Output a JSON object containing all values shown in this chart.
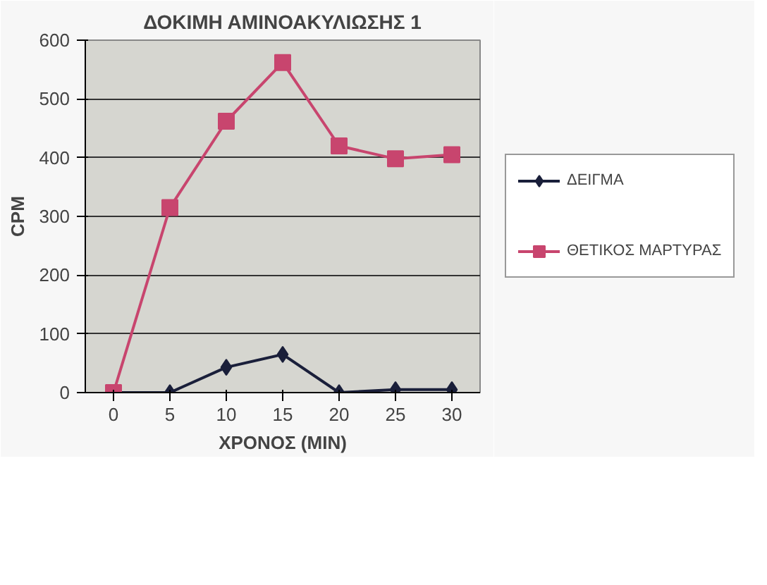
{
  "chart_data": {
    "type": "line",
    "title": "ΔΟΚΙΜΗ ΑΜΙΝΟΑΚΥΛΙΩΣΗΣ 1",
    "xlabel": "ΧΡΟΝΟΣ (MIN)",
    "ylabel": "CPM",
    "categories": [
      "0",
      "5",
      "10",
      "15",
      "20",
      "25",
      "30"
    ],
    "series": [
      {
        "name": "ΔΕΙΓΜΑ",
        "color": "#1a1f3a",
        "marker": "diamond",
        "values": [
          0,
          0,
          43,
          65,
          0,
          5,
          5
        ]
      },
      {
        "name": "ΘΕΤΙΚΟΣ ΜΑΡΤΥΡΑΣ",
        "color": "#c8456e",
        "marker": "square",
        "values": [
          0,
          315,
          462,
          562,
          420,
          398,
          405
        ]
      }
    ],
    "ylim": [
      0,
      600
    ],
    "yticks": [
      0,
      100,
      200,
      300,
      400,
      500,
      600
    ],
    "grid": "y",
    "legend": "right",
    "line_style": "solid"
  }
}
